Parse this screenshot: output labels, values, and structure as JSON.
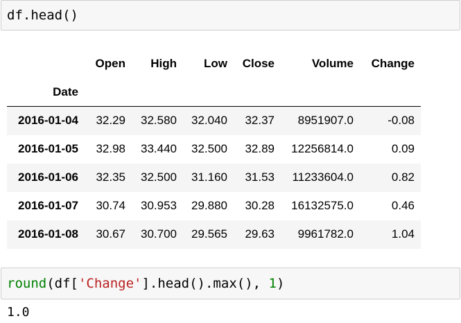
{
  "cells": [
    {
      "input": "df.head()",
      "output_table": {
        "columns": [
          "Open",
          "High",
          "Low",
          "Close",
          "Volume",
          "Change"
        ],
        "index_name": "Date",
        "rows": [
          {
            "index": "2016-01-04",
            "values": [
              "32.29",
              "32.580",
              "32.040",
              "32.37",
              "8951907.0",
              "-0.08"
            ]
          },
          {
            "index": "2016-01-05",
            "values": [
              "32.98",
              "33.440",
              "32.500",
              "32.89",
              "12256814.0",
              "0.09"
            ]
          },
          {
            "index": "2016-01-06",
            "values": [
              "32.35",
              "32.500",
              "31.160",
              "31.53",
              "11233604.0",
              "0.82"
            ]
          },
          {
            "index": "2016-01-07",
            "values": [
              "30.74",
              "30.953",
              "29.880",
              "30.28",
              "16132575.0",
              "0.46"
            ]
          },
          {
            "index": "2016-01-08",
            "values": [
              "30.67",
              "30.700",
              "29.565",
              "29.63",
              "9961782.0",
              "1.04"
            ]
          }
        ]
      }
    },
    {
      "input_tokens": {
        "fn": "round",
        "p1": "(df[",
        "str": "'Change'",
        "p2": "].head().max(), ",
        "num": "1",
        "p3": ")"
      },
      "output_text": "1.0"
    }
  ],
  "syntax_colors": {
    "builtin": "#008000",
    "string": "#ba2121",
    "number": "#008000"
  }
}
